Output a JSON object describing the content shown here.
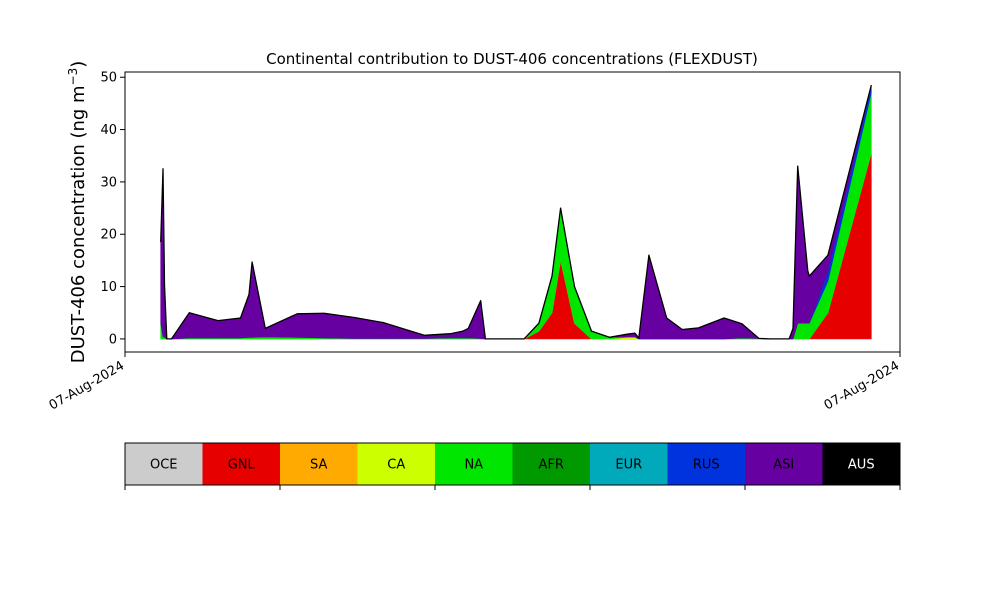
{
  "chart_data": {
    "type": "area",
    "stacked": true,
    "title": "Continental contribution to DUST-406 concentrations (FLEXDUST)",
    "ylabel_main": "DUST-406 concentration (ng m",
    "ylabel_sup": "−3",
    "ylabel_close": ")",
    "xlim": [
      0,
      100
    ],
    "ylim": [
      -2.5,
      51
    ],
    "yticks": [
      0,
      10,
      20,
      30,
      40,
      50
    ],
    "xtick_labels": [
      {
        "x": 0,
        "label": "07-Aug-2024"
      },
      {
        "x": 100,
        "label": "07-Aug-2024"
      }
    ],
    "x": [
      4.6,
      4.9,
      5.1,
      5.4,
      6.0,
      8.3,
      12.0,
      14.9,
      16.0,
      16.4,
      18.1,
      22.2,
      25.7,
      29.6,
      33.4,
      38.6,
      42.0,
      43.6,
      44.3,
      45.9,
      46.5,
      47.5,
      49.4,
      51.5,
      53.4,
      55.1,
      56.2,
      58.0,
      60.2,
      62.5,
      64.8,
      65.8,
      66.3,
      67.6,
      69.9,
      71.9,
      74.0,
      77.3,
      79.6,
      81.8,
      83.2,
      85.7,
      86.2,
      86.8,
      88.1,
      88.3,
      90.7,
      96.3
    ],
    "series": [
      {
        "name": "OCE",
        "color": "#cccccc",
        "values": [
          0,
          0,
          0,
          0,
          0,
          0,
          0,
          0,
          0,
          0,
          0,
          0,
          0,
          0,
          0,
          0,
          0,
          0,
          0,
          0,
          0,
          0,
          0,
          0,
          0,
          0,
          0,
          0,
          0,
          0,
          0,
          0,
          0,
          0,
          0,
          0,
          0,
          0,
          0,
          0,
          0,
          0,
          0,
          0,
          0,
          0,
          0,
          0
        ]
      },
      {
        "name": "GNL",
        "color": "#e60000",
        "values": [
          0,
          0,
          0,
          0,
          0,
          0,
          0,
          0,
          0,
          0,
          0,
          0,
          0,
          0,
          0,
          0,
          0,
          0,
          0,
          0,
          0,
          0,
          0,
          0,
          1.5,
          5,
          15,
          3,
          0,
          0,
          0,
          0,
          0,
          0,
          0,
          0,
          0,
          0,
          0,
          0,
          0,
          0,
          0,
          0,
          0,
          0,
          5,
          35.5
        ]
      },
      {
        "name": "SA",
        "color": "#ffaa00",
        "values": [
          0,
          0,
          0,
          0,
          0,
          0,
          0,
          0,
          0,
          0,
          0,
          0,
          0,
          0,
          0,
          0,
          0,
          0,
          0,
          0,
          0,
          0,
          0,
          0,
          0,
          0,
          0,
          0,
          0,
          0,
          0,
          0,
          0,
          0,
          0,
          0,
          0,
          0,
          0,
          0,
          0,
          0,
          0,
          0,
          0,
          0,
          0,
          0
        ]
      },
      {
        "name": "CA",
        "color": "#ccff00",
        "values": [
          0,
          0,
          0,
          0,
          0,
          0,
          0,
          0,
          0,
          0,
          0,
          0,
          0,
          0,
          0,
          0,
          0,
          0,
          0,
          0,
          0,
          0,
          0,
          0,
          0,
          0,
          0,
          0,
          0,
          0,
          0.3,
          0.3,
          0,
          0,
          0,
          0,
          0,
          0,
          0,
          0,
          0,
          0,
          0,
          0,
          0,
          0,
          0,
          0
        ]
      },
      {
        "name": "NA",
        "color": "#00e600",
        "values": [
          3,
          0.5,
          0.3,
          0,
          0,
          0.2,
          0.2,
          0.2,
          0.3,
          0.3,
          0.4,
          0.3,
          0.2,
          0.1,
          0.1,
          0.1,
          0.2,
          0.2,
          0.2,
          0.1,
          0,
          0,
          0,
          0,
          1.5,
          7,
          10,
          7,
          1.5,
          0.3,
          0.1,
          0.1,
          0,
          0,
          0,
          0,
          0,
          0,
          0.2,
          0.1,
          0,
          0,
          0,
          3,
          3,
          3,
          6,
          11.5
        ]
      },
      {
        "name": "AFR",
        "color": "#009900",
        "values": [
          0,
          0,
          0,
          0,
          0,
          0,
          0,
          0,
          0,
          0,
          0,
          0,
          0,
          0,
          0,
          0,
          0,
          0,
          0,
          0,
          0,
          0,
          0,
          0,
          0,
          0,
          0,
          0,
          0,
          0,
          0,
          0,
          0,
          0,
          0,
          0,
          0,
          0,
          0,
          0,
          0,
          0,
          0,
          0,
          0,
          0,
          0,
          0
        ]
      },
      {
        "name": "EUR",
        "color": "#00aabb",
        "values": [
          0,
          0,
          0,
          0,
          0,
          0,
          0,
          0,
          0,
          0,
          0,
          0,
          0,
          0,
          0,
          0,
          0,
          0,
          0,
          0,
          0,
          0,
          0,
          0,
          0,
          0,
          0,
          0,
          0,
          0,
          0,
          0,
          0,
          0,
          0,
          0,
          0,
          0,
          0,
          0,
          0,
          0,
          0,
          0,
          0,
          0,
          0,
          0
        ]
      },
      {
        "name": "RUS",
        "color": "#0033dd",
        "values": [
          0,
          0,
          0,
          0,
          0,
          0,
          0,
          0,
          0,
          0,
          0,
          0,
          0,
          0,
          0,
          0,
          0,
          0,
          0,
          0,
          0,
          0,
          0,
          0,
          0,
          0,
          0,
          0,
          0,
          0,
          0,
          0,
          0,
          0,
          0,
          0,
          0,
          0,
          0,
          0,
          0,
          0,
          0,
          0,
          0,
          0,
          2,
          1.5
        ]
      },
      {
        "name": "ASI",
        "color": "#6600a0",
        "values": [
          15.5,
          32,
          10,
          0,
          0,
          4.8,
          3.3,
          3.8,
          8.2,
          14.4,
          1.6,
          4.5,
          4.7,
          4,
          3,
          0.6,
          0.8,
          1.3,
          1.8,
          7.2,
          0,
          0,
          0,
          0,
          0,
          0,
          0,
          0,
          0,
          0,
          0.5,
          0.7,
          0.2,
          16,
          4,
          1.8,
          2.1,
          4,
          2.7,
          0,
          0,
          0,
          2,
          30,
          10,
          9,
          3,
          0
        ]
      },
      {
        "name": "AUS",
        "color": "#000000",
        "values": [
          0,
          0,
          0,
          0,
          0,
          0,
          0,
          0,
          0,
          0,
          0,
          0,
          0,
          0,
          0,
          0,
          0,
          0,
          0,
          0,
          0,
          0,
          0,
          0,
          0,
          0,
          0,
          0,
          0,
          0,
          0,
          0,
          0,
          0,
          0,
          0,
          0,
          0,
          0,
          0,
          0,
          0,
          0,
          0,
          0,
          0,
          0,
          0
        ]
      }
    ],
    "grid": false,
    "legend": "colorbar-bottom"
  }
}
